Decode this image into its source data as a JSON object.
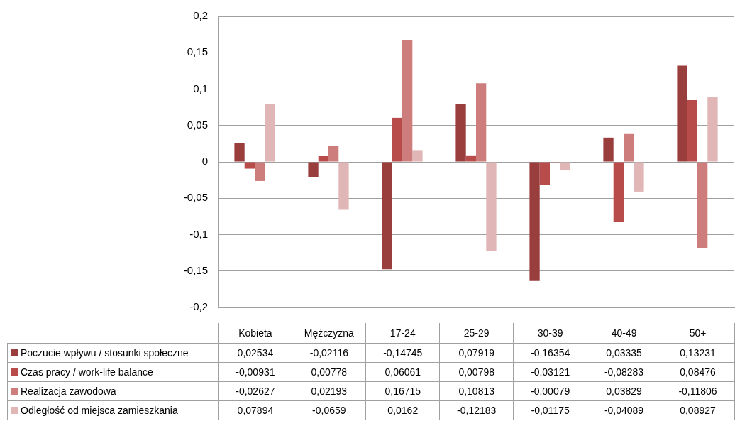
{
  "chart_data": {
    "type": "bar",
    "categories": [
      "Kobieta",
      "Mężczyzna",
      "17-24",
      "25-29",
      "30-39",
      "40-49",
      "50+"
    ],
    "series": [
      {
        "name": "Poczucie wpływu / stosunki społeczne",
        "color": "#993d3d",
        "values": [
          0.02534,
          -0.02116,
          -0.14745,
          0.07919,
          -0.16354,
          0.03335,
          0.13231
        ],
        "value_labels": [
          "0,02534",
          "-0,02116",
          "-0,14745",
          "0,07919",
          "-0,16354",
          "0,03335",
          "0,13231"
        ]
      },
      {
        "name": "Czas pracy / work-life balance",
        "color": "#b84c4a",
        "values": [
          -0.00931,
          0.00778,
          0.06061,
          0.00798,
          -0.03121,
          -0.08283,
          0.08476
        ],
        "value_labels": [
          "-0,00931",
          "0,00778",
          "0,06061",
          "0,00798",
          "-0,03121",
          "-0,08283",
          "0,08476"
        ]
      },
      {
        "name": "Realizacja zawodowa",
        "color": "#cc7d7c",
        "values": [
          -0.02627,
          0.02193,
          0.16715,
          0.10813,
          -0.00079,
          0.03829,
          -0.11806
        ],
        "value_labels": [
          "-0,02627",
          "0,02193",
          "0,16715",
          "0,10813",
          "-0,00079",
          "0,03829",
          "-0,11806"
        ]
      },
      {
        "name": "Odległość od miejsca zamieszkania",
        "color": "#e0b6b6",
        "values": [
          0.07894,
          -0.0659,
          0.0162,
          -0.12183,
          -0.01175,
          -0.04089,
          0.08927
        ],
        "value_labels": [
          "0,07894",
          "-0,0659",
          "0,0162",
          "-0,12183",
          "-0,01175",
          "-0,04089",
          "0,08927"
        ]
      }
    ],
    "ylim": [
      -0.2,
      0.2
    ],
    "yticks": [
      {
        "value": -0.2,
        "label": "-0,2"
      },
      {
        "value": -0.15,
        "label": "-0,15"
      },
      {
        "value": -0.1,
        "label": "-0,1"
      },
      {
        "value": -0.05,
        "label": "-0,05"
      },
      {
        "value": 0,
        "label": "0"
      },
      {
        "value": 0.05,
        "label": "0,05"
      },
      {
        "value": 0.1,
        "label": "0,1"
      },
      {
        "value": 0.15,
        "label": "0,15"
      },
      {
        "value": 0.2,
        "label": "0,2"
      }
    ],
    "grid": "y",
    "legend": "bottom"
  }
}
